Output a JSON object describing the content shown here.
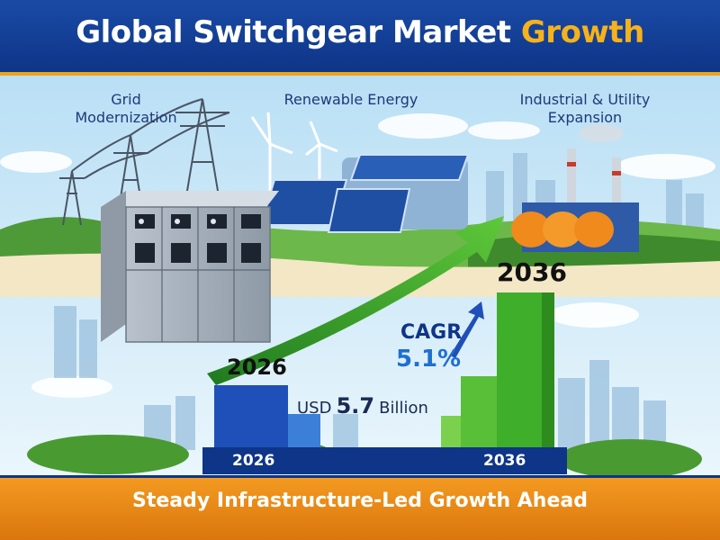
{
  "header": {
    "title_main": "Global Switchgear Market",
    "title_accent": "Growth"
  },
  "labels": {
    "grid_line1": "Grid",
    "grid_line2": "Modernization",
    "renewable": "Renewable Energy",
    "industrial_line1": "Industrial & Utility",
    "industrial_line2": "Expansion"
  },
  "stats": {
    "year_start": "2026",
    "year_end": "2036",
    "cagr_label": "CAGR",
    "cagr_value": "5.1%",
    "usd_prefix": "USD",
    "usd_amount": "5.7",
    "usd_suffix": "Billion"
  },
  "axis": {
    "start": "2026",
    "end": "2036"
  },
  "footer": {
    "tagline": "Steady Infrastructure-Led Growth Ahead"
  },
  "colors": {
    "primary": "#0e3587",
    "accent": "#f6b21b",
    "growth_green": "#3fae2a",
    "footer_orange": "#ef8e1c"
  },
  "icons": [
    "switchgear-icon",
    "transmission-tower-icon",
    "wind-turbine-icon",
    "solar-panel-icon",
    "factory-icon",
    "growth-arrow-icon",
    "city-skyline-icon"
  ]
}
